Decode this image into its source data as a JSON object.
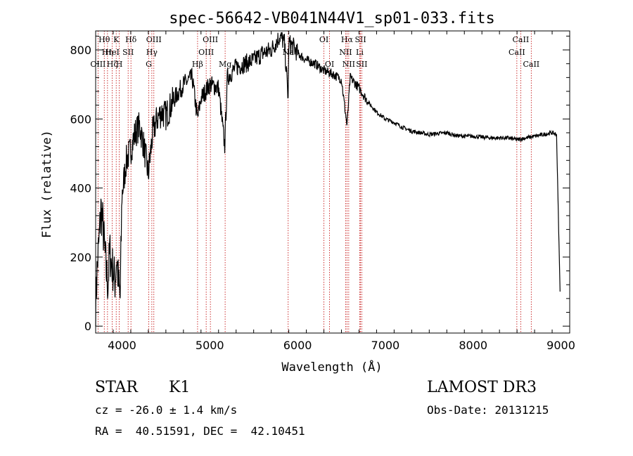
{
  "chart_data": {
    "type": "line",
    "title": "spec-56642-VB041N44V1_sp01-033.fits",
    "xlabel": "Wavelength (Å)",
    "ylabel": "Flux (relative)",
    "xlim": [
      3700,
      9100
    ],
    "ylim": [
      -20,
      855
    ],
    "x_ticks": [
      4000,
      5000,
      6000,
      7000,
      8000,
      9000
    ],
    "y_ticks": [
      0,
      200,
      400,
      600,
      800
    ],
    "series": [
      {
        "name": "spectrum",
        "x": [
          3700,
          3720,
          3740,
          3760,
          3780,
          3800,
          3820,
          3840,
          3860,
          3880,
          3900,
          3920,
          3940,
          3960,
          3980,
          4000,
          4050,
          4100,
          4150,
          4200,
          4250,
          4300,
          4350,
          4400,
          4450,
          4500,
          4600,
          4700,
          4800,
          4860,
          4900,
          5000,
          5100,
          5170,
          5200,
          5300,
          5400,
          5500,
          5600,
          5700,
          5800,
          5850,
          5893,
          5900,
          5950,
          6000,
          6100,
          6200,
          6300,
          6400,
          6500,
          6563,
          6600,
          6700,
          6800,
          6900,
          7000,
          7100,
          7200,
          7300,
          7400,
          7500,
          7600,
          7700,
          7800,
          7900,
          8000,
          8200,
          8400,
          8500,
          8600,
          8700,
          8800,
          8900,
          8950,
          8990
        ],
        "y": [
          60,
          180,
          250,
          340,
          300,
          230,
          160,
          120,
          220,
          180,
          160,
          130,
          200,
          120,
          80,
          380,
          480,
          510,
          560,
          580,
          520,
          440,
          560,
          600,
          620,
          610,
          660,
          700,
          720,
          600,
          660,
          700,
          690,
          520,
          720,
          750,
          760,
          770,
          790,
          800,
          840,
          820,
          660,
          820,
          810,
          790,
          770,
          760,
          740,
          730,
          715,
          580,
          720,
          690,
          650,
          620,
          600,
          590,
          575,
          565,
          560,
          555,
          558,
          560,
          552,
          550,
          550,
          545,
          545,
          540,
          545,
          550,
          555,
          560,
          555,
          100
        ]
      }
    ],
    "line_markers": [
      {
        "label": "Hθ",
        "wl": 3798,
        "row": 1
      },
      {
        "label": "OIII",
        "wl": 3727,
        "row": 3
      },
      {
        "label": "Hη",
        "wl": 3835,
        "row": 2
      },
      {
        "label": "HeI",
        "wl": 3889,
        "row": 2
      },
      {
        "label": "Hζ",
        "wl": 3889,
        "row": 3
      },
      {
        "label": "K",
        "wl": 3934,
        "row": 1
      },
      {
        "label": "SII",
        "wl": 4070,
        "row": 2
      },
      {
        "label": "H",
        "wl": 3969,
        "row": 3
      },
      {
        "label": "Hδ",
        "wl": 4102,
        "row": 1
      },
      {
        "label": "OIII",
        "wl": 4363,
        "row": 1
      },
      {
        "label": "Hγ",
        "wl": 4340,
        "row": 2
      },
      {
        "label": "G",
        "wl": 4305,
        "row": 3
      },
      {
        "label": "OIII",
        "wl": 5007,
        "row": 1
      },
      {
        "label": "OIII",
        "wl": 4959,
        "row": 2
      },
      {
        "label": "Hβ",
        "wl": 4861,
        "row": 3
      },
      {
        "label": "Mg",
        "wl": 5175,
        "row": 3
      },
      {
        "label": "Na",
        "wl": 5893,
        "row": 2
      },
      {
        "label": "OI",
        "wl": 6300,
        "row": 1
      },
      {
        "label": "OI",
        "wl": 6364,
        "row": 3
      },
      {
        "label": "Hα",
        "wl": 6563,
        "row": 1
      },
      {
        "label": "SII",
        "wl": 6717,
        "row": 1
      },
      {
        "label": "NII",
        "wl": 6548,
        "row": 2
      },
      {
        "label": "Li",
        "wl": 6708,
        "row": 2
      },
      {
        "label": "NII",
        "wl": 6583,
        "row": 3
      },
      {
        "label": "SII",
        "wl": 6731,
        "row": 3
      },
      {
        "label": "CaII",
        "wl": 8542,
        "row": 1
      },
      {
        "label": "CaII",
        "wl": 8498,
        "row": 2
      },
      {
        "label": "CaII",
        "wl": 8662,
        "row": 3
      }
    ]
  },
  "info": {
    "class_label": "STAR",
    "subclass": "K1",
    "survey": "LAMOST DR3",
    "cz": "cz = -26.0 ± 1.4 km/s",
    "obs_date": "Obs-Date: 20131215",
    "coords": "RA =  40.51591, DEC =  42.10451"
  }
}
